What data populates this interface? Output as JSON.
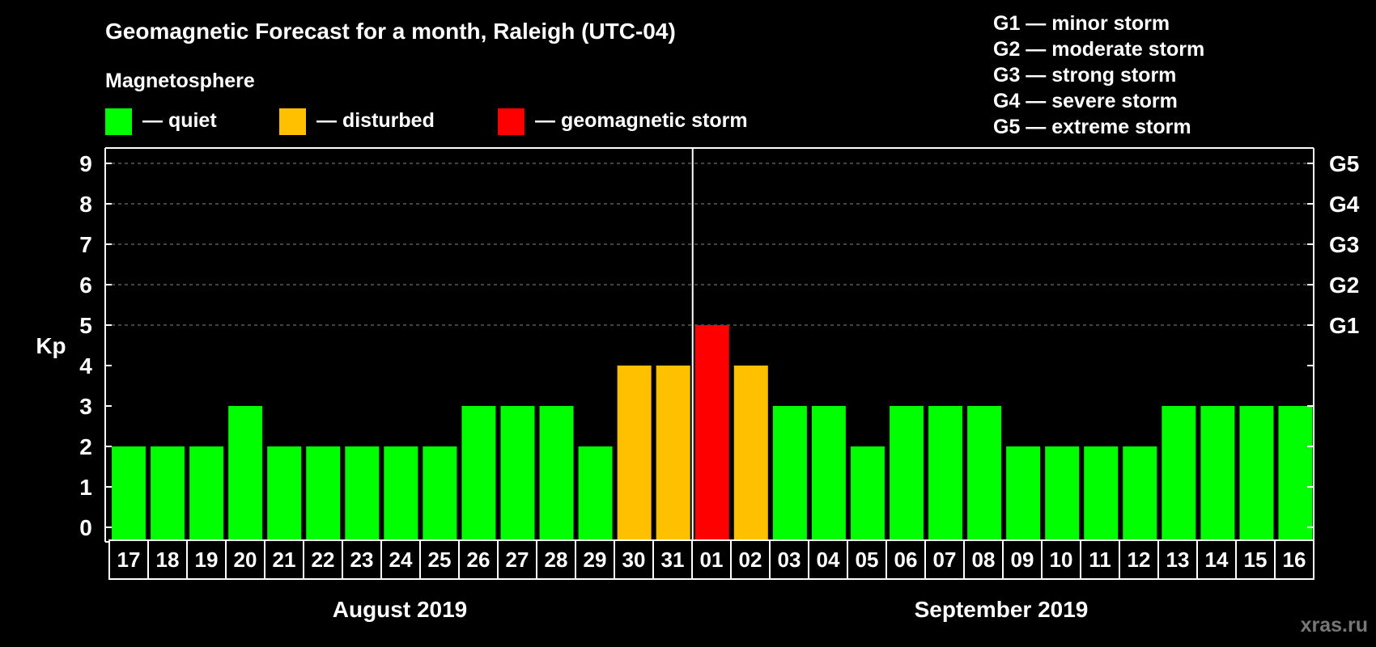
{
  "header": {
    "title": "Geomagnetic Forecast for a month, Raleigh (UTC-04)",
    "subtitle": "Magnetosphere"
  },
  "legend": {
    "items": [
      {
        "label": "— quiet",
        "color": "#00ff00"
      },
      {
        "label": "— disturbed",
        "color": "#ffc000"
      },
      {
        "label": "— geomagnetic storm",
        "color": "#ff0000"
      }
    ]
  },
  "storm_scale": [
    "G1 — minor storm",
    "G2 — moderate storm",
    "G3 — strong storm",
    "G4 — severe storm",
    "G5 — extreme storm"
  ],
  "months": {
    "left": "August 2019",
    "right": "September 2019"
  },
  "watermark": "xras.ru",
  "chart_data": {
    "type": "bar",
    "ylabel": "Kp",
    "ylim": [
      0,
      9
    ],
    "yticks": [
      "0",
      "1",
      "2",
      "3",
      "4",
      "5",
      "6",
      "7",
      "8",
      "9"
    ],
    "right_axis_labels": [
      {
        "kp": 5,
        "label": "G1"
      },
      {
        "kp": 6,
        "label": "G2"
      },
      {
        "kp": 7,
        "label": "G3"
      },
      {
        "kp": 8,
        "label": "G4"
      },
      {
        "kp": 9,
        "label": "G5"
      }
    ],
    "grid": "dashed at Kp 5-9",
    "month_separator_before": "01",
    "categories": [
      "17",
      "18",
      "19",
      "20",
      "21",
      "22",
      "23",
      "24",
      "25",
      "26",
      "27",
      "28",
      "29",
      "30",
      "31",
      "01",
      "02",
      "03",
      "04",
      "05",
      "06",
      "07",
      "08",
      "09",
      "10",
      "11",
      "12",
      "13",
      "14",
      "15",
      "16"
    ],
    "values": [
      2,
      2,
      2,
      3,
      2,
      2,
      2,
      2,
      2,
      3,
      3,
      3,
      2,
      4,
      4,
      5,
      4,
      3,
      3,
      2,
      3,
      3,
      3,
      2,
      2,
      2,
      2,
      3,
      3,
      3,
      3
    ],
    "colors": {
      "quiet": "#00ff00",
      "disturbed": "#ffc000",
      "storm": "#ff0000"
    }
  }
}
